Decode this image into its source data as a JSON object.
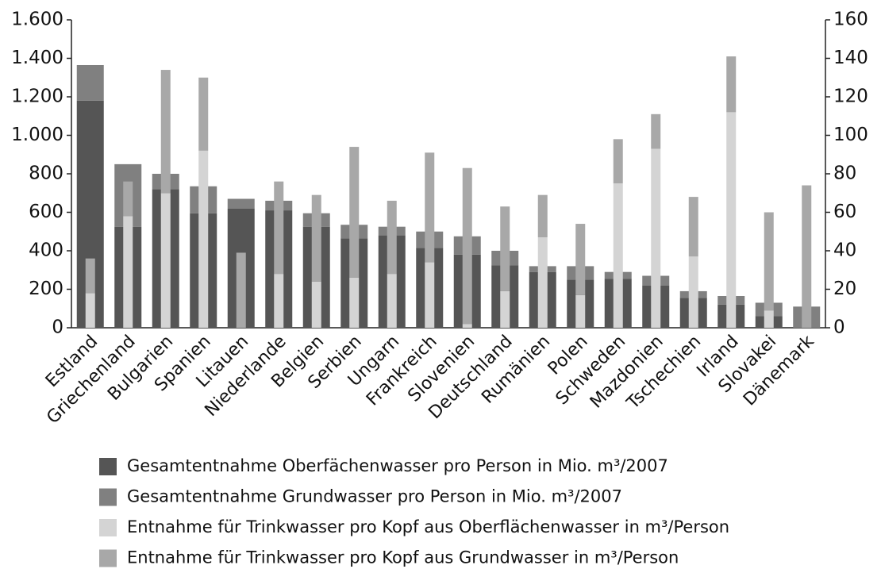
{
  "chart_data": {
    "type": "bar",
    "stacked": true,
    "categories": [
      "Estland",
      "Griechenland",
      "Bulgarien",
      "Spanien",
      "Litauen",
      "Niederlande",
      "Belgien",
      "Serbien",
      "Ungarn",
      "Frankreich",
      "Slovenien",
      "Deutschland",
      "Rumänien",
      "Polen",
      "Schweden",
      "Mazdonien",
      "Tschechien",
      "Irland",
      "Slovakei",
      "Dänemark"
    ],
    "series": [
      {
        "name": "Gesamtentnahme Oberfächenwasser pro Person in Mio. m³/2007",
        "color": "#555555",
        "axis": "y",
        "values": [
          1180,
          525,
          720,
          595,
          620,
          610,
          525,
          465,
          480,
          415,
          380,
          325,
          290,
          250,
          255,
          220,
          155,
          120,
          60,
          0
        ]
      },
      {
        "name": "Gesamtentnahme Grundwasser pro Person in Mio. m³/2007",
        "color": "#808080",
        "axis": "y",
        "values": [
          185,
          325,
          80,
          140,
          50,
          50,
          70,
          70,
          45,
          85,
          95,
          75,
          30,
          70,
          35,
          50,
          35,
          45,
          70,
          110
        ]
      },
      {
        "name": "Entnahme für Trinkwasser pro Kopf aus Oberflächenwasser in m³/Person",
        "color": "#d4d4d4",
        "axis": "y2",
        "values": [
          18,
          58,
          70,
          92,
          0,
          28,
          24,
          26,
          28,
          34,
          2,
          19,
          47,
          17,
          75,
          93,
          37,
          112,
          9,
          0
        ]
      },
      {
        "name": "Entnahme für Trinkwasser pro Kopf aus Grundwasser in m³/Person",
        "color": "#a8a8a8",
        "axis": "y2",
        "values": [
          18,
          18,
          64,
          38,
          39,
          48,
          45,
          68,
          38,
          57,
          81,
          44,
          22,
          37,
          23,
          18,
          31,
          29,
          51,
          74
        ]
      }
    ],
    "ylim": [
      0,
      1600
    ],
    "yticks": [
      0,
      200,
      400,
      600,
      800,
      {
        "value": 1000,
        "label": "1.000"
      },
      {
        "value": 1200,
        "label": "1.200"
      },
      {
        "value": 1400,
        "label": "1.400"
      },
      {
        "value": 1600,
        "label": "1.600"
      }
    ],
    "y2lim": [
      0,
      160
    ],
    "y2ticks": [
      0,
      20,
      40,
      60,
      80,
      100,
      120,
      140,
      160
    ]
  }
}
